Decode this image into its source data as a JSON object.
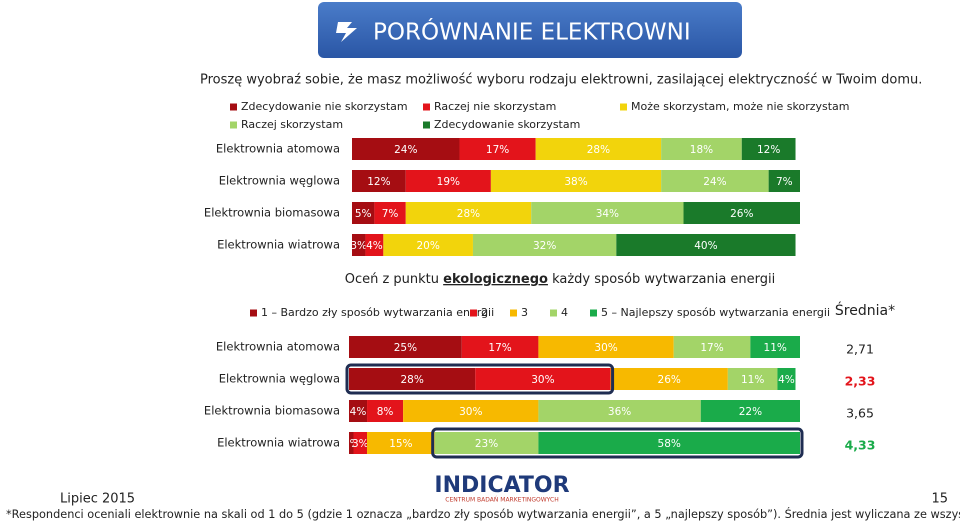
{
  "slide": {
    "title": "PORÓWNANIE ELEKTROWNI",
    "question": "Proszę wyobraź sobie, że masz możliwość wyboru rodzaju elektrowni, zasilającej elektryczność w Twoim domu.",
    "date": "Lipiec 2015",
    "page": "15",
    "footnote": "*Respondenci oceniali elektrownie na skali od 1 do 5 (gdzie 1 oznacza „bardzo zły sposób wytwarzania energii”, a 5 „najlepszy sposób”). Średnia jest wyliczana ze wszystkich odpowiedzi.",
    "logo": "INDICATOR",
    "logo_subtitle": "CENTRUM BADAŃ MARKETINGOWYCH"
  },
  "chart_data": [
    {
      "type": "stacked-bar-horizontal",
      "categories": [
        "Elektrownia atomowa",
        "Elektrownia węglowa",
        "Elektrownia biomasowa",
        "Elektrownia wiatrowa"
      ],
      "xlim": [
        0,
        100
      ],
      "series": [
        {
          "name": "Zdecydowanie nie skorzystam",
          "color": "#a50d12",
          "values": [
            24,
            12,
            5,
            3
          ],
          "value_labels": [
            "24%",
            "12%",
            "5%",
            "3%"
          ]
        },
        {
          "name": "Raczej nie skorzystam",
          "color": "#e3141b",
          "values": [
            17,
            19,
            7,
            4
          ],
          "value_labels": [
            "17%",
            "19%",
            "7%",
            "4%"
          ]
        },
        {
          "name": "Może skorzystam, może nie skorzystam",
          "color": "#f2d40c",
          "values": [
            28,
            38,
            28,
            20
          ],
          "value_labels": [
            "28%",
            "38%",
            "28%",
            "20%"
          ]
        },
        {
          "name": "Raczej skorzystam",
          "color": "#a3d468",
          "values": [
            18,
            24,
            34,
            32
          ],
          "value_labels": [
            "18%",
            "24%",
            "34%",
            "32%"
          ]
        },
        {
          "name": "Zdecydowanie skorzystam",
          "color": "#1a7a2a",
          "values": [
            12,
            7,
            26,
            40
          ],
          "value_labels": [
            "12%",
            "7%",
            "26%",
            "40%"
          ]
        }
      ]
    },
    {
      "type": "stacked-bar-horizontal",
      "title_parts": [
        "Oceń z punktu ",
        "ekologicznego",
        " każdy sposób wytwarzania energii"
      ],
      "categories": [
        "Elektrownia atomowa",
        "Elektrownia węglowa",
        "Elektrownia biomasowa",
        "Elektrownia wiatrowa"
      ],
      "xlim": [
        0,
        100
      ],
      "series": [
        {
          "name": "1 – Bardzo zły sposób wytwarzania energii",
          "color": "#a50d12",
          "values": [
            25,
            28,
            4,
            1
          ],
          "value_labels": [
            "25%",
            "28%",
            "4%",
            "1%"
          ]
        },
        {
          "name": "2",
          "color": "#e3141b",
          "values": [
            17,
            30,
            8,
            3
          ],
          "value_labels": [
            "17%",
            "30%",
            "8%",
            "3%"
          ]
        },
        {
          "name": "3",
          "color": "#f7b900",
          "values": [
            30,
            26,
            30,
            15
          ],
          "value_labels": [
            "30%",
            "26%",
            "30%",
            "15%"
          ]
        },
        {
          "name": "4",
          "color": "#a3d468",
          "values": [
            17,
            11,
            36,
            23
          ],
          "value_labels": [
            "17%",
            "11%",
            "36%",
            "23%"
          ]
        },
        {
          "name": "5 – Najlepszy sposób wytwarzania energii",
          "color": "#1aab4a",
          "values": [
            11,
            4,
            22,
            58
          ],
          "value_labels": [
            "11%",
            "4%",
            "22%",
            "58%"
          ]
        }
      ],
      "average_title": "Średnia*",
      "averages": {
        "values": [
          2.71,
          2.33,
          3.65,
          4.33
        ],
        "value_labels": [
          "2,71",
          "2,33",
          "3,65",
          "4,33"
        ],
        "colors": [
          "#222222",
          "#e3141b",
          "#222222",
          "#1aab4a"
        ]
      }
    }
  ]
}
